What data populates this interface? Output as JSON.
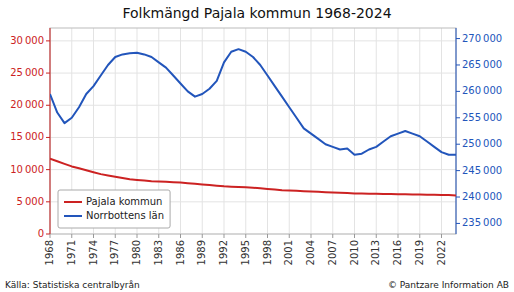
{
  "chart_data": {
    "type": "line",
    "title": "Folkmängd Pajala kommun 1968-2024",
    "annotations": [
      "Källa: Statistiska centralbyrån",
      "© Pantzare Information AB"
    ],
    "x": [
      1968,
      1969,
      1970,
      1971,
      1972,
      1973,
      1974,
      1975,
      1976,
      1977,
      1978,
      1979,
      1980,
      1981,
      1982,
      1983,
      1984,
      1985,
      1986,
      1987,
      1988,
      1989,
      1990,
      1991,
      1992,
      1993,
      1994,
      1995,
      1996,
      1997,
      1998,
      1999,
      2000,
      2001,
      2002,
      2003,
      2004,
      2005,
      2006,
      2007,
      2008,
      2009,
      2010,
      2011,
      2012,
      2013,
      2014,
      2015,
      2016,
      2017,
      2018,
      2019,
      2020,
      2021,
      2022,
      2023,
      2024
    ],
    "series": [
      {
        "name": "Pajala kommun",
        "color": "#cc2222",
        "values": [
          11700,
          11300,
          10900,
          10500,
          10200,
          9900,
          9600,
          9300,
          9100,
          8900,
          8700,
          8500,
          8400,
          8300,
          8200,
          8150,
          8100,
          8050,
          8000,
          7900,
          7800,
          7700,
          7600,
          7500,
          7400,
          7350,
          7300,
          7250,
          7200,
          7100,
          7000,
          6900,
          6800,
          6750,
          6700,
          6650,
          6600,
          6550,
          6500,
          6450,
          6400,
          6350,
          6300,
          6280,
          6260,
          6240,
          6220,
          6200,
          6180,
          6160,
          6140,
          6120,
          6100,
          6080,
          6060,
          6040,
          6000
        ]
      },
      {
        "name": "Norrbottens län",
        "color": "#2255bb",
        "axis": "y2",
        "values": [
          259500,
          256000,
          254000,
          255000,
          257000,
          259500,
          261000,
          263000,
          265000,
          266500,
          267000,
          267200,
          267300,
          267000,
          266500,
          265500,
          264500,
          263000,
          261500,
          260000,
          259000,
          259500,
          260500,
          262000,
          265500,
          267500,
          268000,
          267500,
          266500,
          265000,
          263000,
          261000,
          259000,
          257000,
          255000,
          253000,
          252000,
          251000,
          250000,
          249500,
          249000,
          249200,
          248000,
          248200,
          249000,
          249500,
          250500,
          251500,
          252000,
          252500,
          252000,
          251500,
          250500,
          249500,
          248500,
          248000,
          248000
        ]
      }
    ],
    "xlim": [
      1968,
      2024
    ],
    "xticks": [
      1968,
      1971,
      1974,
      1977,
      1980,
      1983,
      1986,
      1989,
      1992,
      1995,
      1998,
      2001,
      2004,
      2007,
      2010,
      2013,
      2016,
      2019,
      2022
    ],
    "ylim": [
      0,
      32000
    ],
    "yticks": [
      0,
      {
        "value": 5000,
        "label": "5 000"
      },
      {
        "value": 10000,
        "label": "10 000"
      },
      {
        "value": 15000,
        "label": "15 000"
      },
      {
        "value": 20000,
        "label": "20 000"
      },
      {
        "value": 25000,
        "label": "25 000"
      },
      {
        "value": 30000,
        "label": "30 000"
      }
    ],
    "y2lim": [
      233000,
      272000
    ],
    "y2ticks": [
      {
        "value": 235000,
        "label": "235 000"
      },
      {
        "value": 240000,
        "label": "240 000"
      },
      {
        "value": 245000,
        "label": "245 000"
      },
      {
        "value": 250000,
        "label": "250 000"
      },
      {
        "value": 255000,
        "label": "255 000"
      },
      {
        "value": 260000,
        "label": "260 000"
      },
      {
        "value": 265000,
        "label": "265 000"
      },
      {
        "value": 270000,
        "label": "270 000"
      }
    ],
    "grid": true,
    "legend": "lower left"
  }
}
